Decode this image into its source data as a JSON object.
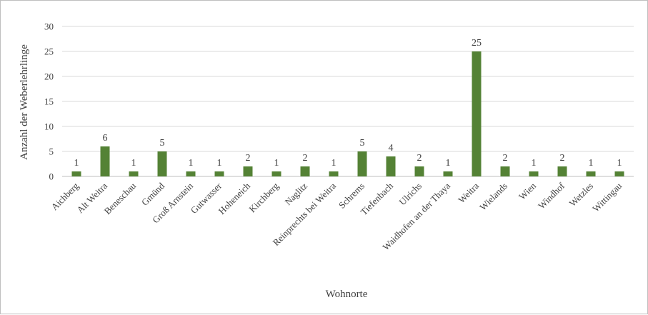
{
  "chart_data": {
    "type": "bar",
    "title": "",
    "xlabel": "Wohnorte",
    "ylabel": "Anzahl der Weberlehrlinge",
    "ylim": [
      0,
      30
    ],
    "yticks": [
      0,
      5,
      10,
      15,
      20,
      25,
      30
    ],
    "grid": true,
    "legend": "none",
    "bar_color": "#548235",
    "categories": [
      "Aichberg",
      "Alt Weitra",
      "Beneschau",
      "Gmünd",
      "Groß Arnstein",
      "Gutwasser",
      "Hoheneich",
      "Kirchberg",
      "Naglitz",
      "Reinprechts bei Weitra",
      "Schrems",
      "Tiefenbach",
      "Ulrichs",
      "Waidhofen an der Thaya",
      "Weitra",
      "Wielands",
      "Wien",
      "Windhof",
      "Wetzles",
      "Wittingau"
    ],
    "values": [
      1,
      6,
      1,
      5,
      1,
      1,
      2,
      1,
      2,
      1,
      5,
      4,
      2,
      1,
      25,
      2,
      1,
      2,
      1,
      1
    ]
  }
}
